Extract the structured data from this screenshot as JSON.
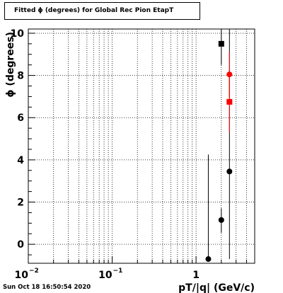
{
  "title": "Fitted ϕ (degrees) for Global Rec Pion EtapT",
  "timestamp": "Sun Oct 18 16:50:54 2020",
  "chart_data": {
    "type": "scatter",
    "title": "Fitted ϕ (degrees) for Global Rec Pion EtapT",
    "xlabel": "pT/|q| (GeV/c)",
    "ylabel": "ϕ (degrees)",
    "x_scale": "log",
    "xlim": [
      0.01,
      5
    ],
    "ylim": [
      -0.9,
      10.2
    ],
    "grid": true,
    "x_ticks": [
      {
        "value": 0.01,
        "label": "10",
        "exp": "−2"
      },
      {
        "value": 0.1,
        "label": "10",
        "exp": "−1"
      },
      {
        "value": 1,
        "label": "1",
        "exp": ""
      }
    ],
    "y_ticks": [
      0,
      2,
      4,
      6,
      8,
      10
    ],
    "series": [
      {
        "color": "#000000",
        "marker": "circle",
        "points": [
          {
            "x": 1.4,
            "y": -0.7,
            "ylow": -0.7,
            "yhigh": 4.25
          },
          {
            "x": 2.0,
            "y": 1.15,
            "ylow": 0.55,
            "yhigh": 1.7
          },
          {
            "x": 2.5,
            "y": 3.45,
            "ylow": -0.7,
            "yhigh": 10.2
          }
        ]
      },
      {
        "color": "#000000",
        "marker": "square",
        "points": [
          {
            "x": 2.0,
            "y": 9.5,
            "ylow": 8.5,
            "yhigh": 10.2
          }
        ]
      },
      {
        "color": "#ff0000",
        "marker": "circle",
        "points": [
          {
            "x": 2.5,
            "y": 8.05,
            "ylow": 7.0,
            "yhigh": 9.1
          }
        ]
      },
      {
        "color": "#ff0000",
        "marker": "square",
        "points": [
          {
            "x": 2.5,
            "y": 6.75,
            "ylow": 5.3,
            "yhigh": 8.1
          }
        ]
      }
    ]
  }
}
